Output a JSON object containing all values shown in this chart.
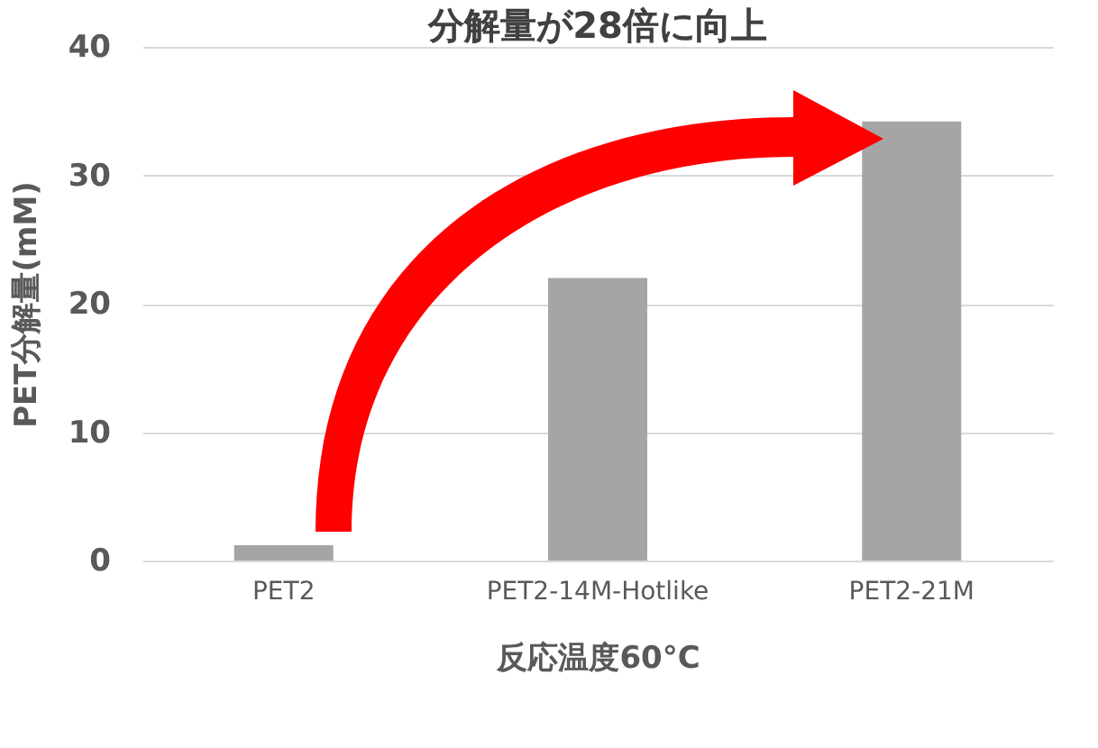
{
  "chart_data": {
    "type": "bar",
    "title": "分解量が28倍に向上",
    "xlabel": "反応温度60°C",
    "ylabel": "PET分解量(mM)",
    "categories": [
      "PET2",
      "PET2-14M-Hotlike",
      "PET2-21M"
    ],
    "values": [
      1.2,
      22,
      34.2
    ],
    "color": "#a5a5a5",
    "ylim": [
      0,
      40
    ],
    "yticks": [
      0,
      10,
      20,
      30,
      40
    ],
    "grid": "y"
  }
}
